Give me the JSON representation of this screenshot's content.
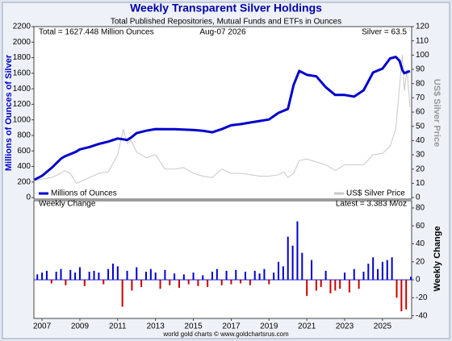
{
  "chart_data": [
    {
      "type": "line",
      "title": "Weekly Transparent Silver Holdings",
      "subtitle": "Total Published Repositories, Mutual Funds and ETFs in Ounces",
      "header_left": "Total = 1627.448 Million Ounces",
      "header_center": "Aug-07  2026",
      "header_right": "Silver = 63.5",
      "ylabel": "Millions of Ounces of Silver",
      "y2label": "US$ Silver Price",
      "xlim": [
        2006.57,
        2026.54
      ],
      "ylim": [
        -20,
        2200
      ],
      "yticks": [
        0,
        200,
        400,
        600,
        800,
        1000,
        1200,
        1400,
        1600,
        1800,
        2000,
        2200
      ],
      "y2lim": [
        -1.1,
        120
      ],
      "y2ticks": [
        0,
        10,
        20,
        30,
        40,
        50,
        60,
        70,
        80,
        90,
        100,
        110,
        120
      ],
      "x": [
        2006.6,
        2007,
        2007.5,
        2008,
        2008.2,
        2008.5,
        2008.8,
        2009,
        2009.5,
        2010,
        2010.5,
        2011,
        2011.3,
        2011.5,
        2011.7,
        2012,
        2012.5,
        2013,
        2013.5,
        2014,
        2014.5,
        2015,
        2015.5,
        2016,
        2016.5,
        2017,
        2017.5,
        2018,
        2018.5,
        2019,
        2019.5,
        2019.8,
        2020,
        2020.3,
        2020.6,
        2021,
        2021.5,
        2022,
        2022.5,
        2023,
        2023.5,
        2024,
        2024.5,
        2025,
        2025.4,
        2025.7,
        2025.9,
        2026.05,
        2026.15,
        2026.3,
        2026.45
      ],
      "series": [
        {
          "name": "Millions of Ounces",
          "color": "#0000cc",
          "values": [
            230,
            280,
            380,
            500,
            530,
            560,
            590,
            620,
            650,
            690,
            720,
            760,
            750,
            740,
            770,
            830,
            860,
            882,
            880,
            880,
            875,
            870,
            860,
            840,
            880,
            930,
            945,
            965,
            985,
            1005,
            1090,
            1120,
            1140,
            1450,
            1630,
            1580,
            1560,
            1420,
            1320,
            1320,
            1300,
            1380,
            1610,
            1660,
            1790,
            1810,
            1760,
            1640,
            1600,
            1615,
            1627.448
          ]
        },
        {
          "name": "US$ Silver Price",
          "color": "#c8c8c8",
          "axis": "y2",
          "values": [
            12,
            13,
            14,
            17,
            19,
            17,
            10,
            11,
            14,
            17,
            18,
            30,
            48,
            38,
            40,
            32,
            28,
            30,
            20,
            20,
            21,
            17,
            15,
            14,
            20,
            17,
            17,
            16,
            15,
            15,
            16,
            18,
            14,
            17,
            26,
            27,
            25,
            23,
            19,
            23,
            23,
            23,
            30,
            31,
            36,
            48,
            78,
            100,
            75,
            90,
            63.5
          ]
        }
      ]
    },
    {
      "type": "bar",
      "title": "Weekly Change",
      "header_right": "Latest = 3.383 M/oz",
      "ylabel": "Weekly Change",
      "source": "world gold charts © www.goldchartsrus.com",
      "positive_color": "#0000cc",
      "negative_color": "#cc0000",
      "xlim": [
        2006.57,
        2026.54
      ],
      "xticks": [
        2007,
        2009,
        2011,
        2013,
        2015,
        2017,
        2019,
        2021,
        2023,
        2025
      ],
      "ylim": [
        -43,
        88
      ],
      "yticks": [
        -40,
        -20,
        0,
        20,
        40,
        60,
        80
      ],
      "x": [
        2006.75,
        2007,
        2007.25,
        2007.5,
        2007.75,
        2008,
        2008.25,
        2008.5,
        2008.75,
        2009,
        2009.25,
        2009.5,
        2009.75,
        2010,
        2010.25,
        2010.5,
        2010.75,
        2011,
        2011.25,
        2011.5,
        2011.75,
        2012,
        2012.25,
        2012.5,
        2012.75,
        2013,
        2013.25,
        2013.5,
        2013.75,
        2014,
        2014.25,
        2014.5,
        2014.75,
        2015,
        2015.25,
        2015.5,
        2015.75,
        2016,
        2016.25,
        2016.5,
        2016.75,
        2017,
        2017.25,
        2017.5,
        2017.75,
        2018,
        2018.25,
        2018.5,
        2018.75,
        2019,
        2019.25,
        2019.5,
        2019.75,
        2020,
        2020.25,
        2020.5,
        2020.75,
        2021,
        2021.25,
        2021.5,
        2021.75,
        2022,
        2022.25,
        2022.5,
        2022.75,
        2023,
        2023.25,
        2023.5,
        2023.75,
        2024,
        2024.25,
        2024.5,
        2024.75,
        2025,
        2025.25,
        2025.5,
        2025.75,
        2026,
        2026.25,
        2026.5
      ],
      "values": [
        6,
        8,
        10,
        -4,
        9,
        12,
        -6,
        11,
        8,
        14,
        -7,
        9,
        10,
        8,
        -5,
        12,
        18,
        15,
        -30,
        10,
        -12,
        14,
        -8,
        9,
        12,
        8,
        -10,
        11,
        -6,
        7,
        -9,
        6,
        -5,
        8,
        -7,
        5,
        -8,
        9,
        12,
        -6,
        10,
        -5,
        11,
        -4,
        9,
        -6,
        10,
        7,
        12,
        -5,
        8,
        20,
        15,
        48,
        38,
        65,
        30,
        -18,
        22,
        -12,
        -8,
        10,
        -15,
        -12,
        -10,
        8,
        -14,
        12,
        -10,
        9,
        18,
        25,
        12,
        20,
        22,
        25,
        -20,
        -35,
        -33,
        3.383
      ]
    }
  ]
}
